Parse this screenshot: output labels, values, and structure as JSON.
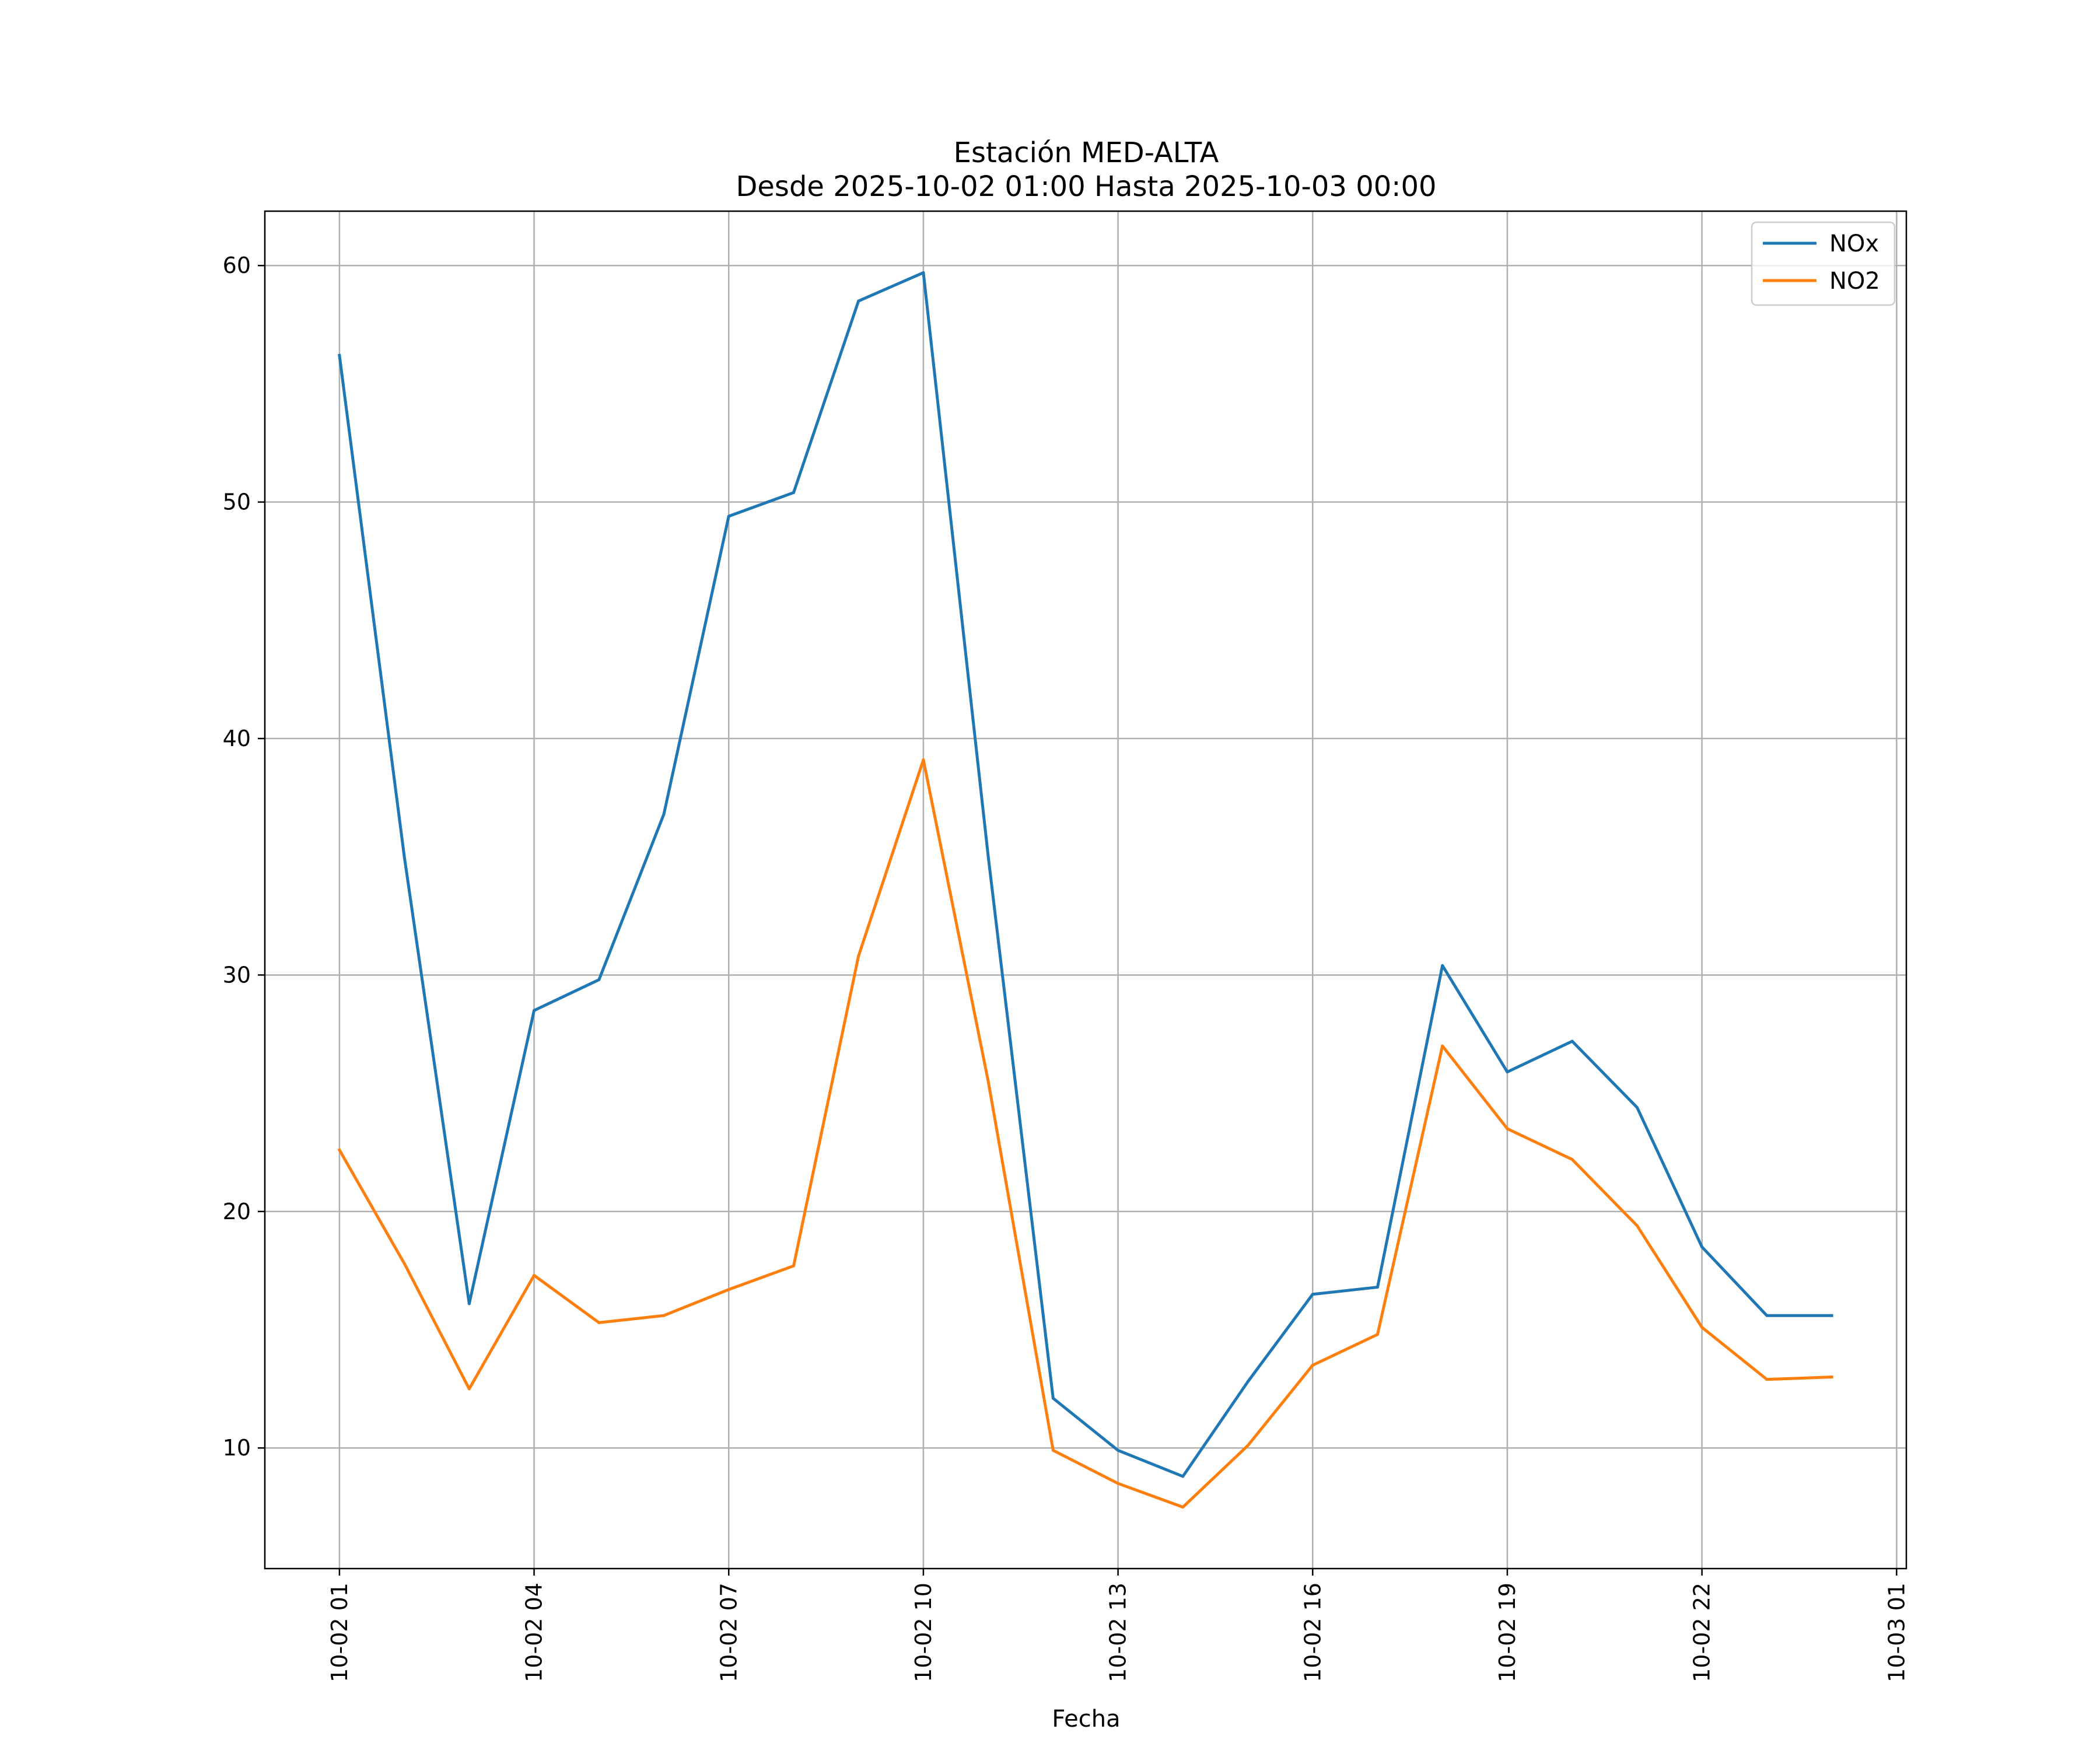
{
  "chart_data": {
    "type": "line",
    "title": "Estación MED-ALTA",
    "subtitle": "Desde 2025-10-02 01:00 Hasta 2025-10-03 00:00",
    "xlabel": "Fecha",
    "ylabel": "",
    "x": [
      1,
      2,
      3,
      4,
      5,
      6,
      7,
      8,
      9,
      10,
      11,
      12,
      13,
      14,
      15,
      16,
      17,
      18,
      19,
      20,
      21,
      22,
      23,
      24
    ],
    "x_unit": "hour of 2025-10-02",
    "xlim": [
      -0.15,
      25.15
    ],
    "ylim": [
      4.9,
      62.3
    ],
    "xticks": [
      1,
      4,
      7,
      10,
      13,
      16,
      19,
      22,
      25
    ],
    "xtick_labels": [
      "10-02 01",
      "10-02 04",
      "10-02 07",
      "10-02 10",
      "10-02 13",
      "10-02 16",
      "10-02 19",
      "10-02 22",
      "10-03 01"
    ],
    "yticks": [
      10,
      20,
      30,
      40,
      50,
      60
    ],
    "ytick_labels": [
      "10",
      "20",
      "30",
      "40",
      "50",
      "60"
    ],
    "grid": true,
    "legend_position": "top-right",
    "series": [
      {
        "name": "NOx",
        "color": "#1f77b4",
        "values": [
          56.2,
          35.0,
          16.1,
          28.5,
          29.8,
          36.8,
          49.4,
          50.4,
          58.5,
          59.7,
          35.0,
          12.1,
          9.9,
          8.8,
          12.8,
          16.5,
          16.8,
          30.4,
          25.9,
          27.2,
          24.4,
          18.5,
          15.6,
          15.6
        ]
      },
      {
        "name": "NO2",
        "color": "#ff7f0e",
        "values": [
          22.6,
          17.8,
          12.5,
          17.3,
          15.3,
          15.6,
          16.7,
          17.7,
          30.8,
          39.1,
          25.5,
          9.9,
          8.5,
          7.5,
          10.1,
          13.5,
          14.8,
          27.0,
          23.5,
          22.2,
          19.4,
          15.1,
          12.9,
          13.0
        ]
      }
    ]
  }
}
